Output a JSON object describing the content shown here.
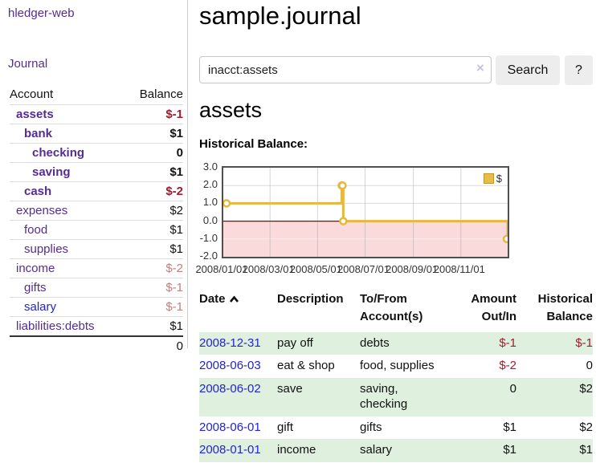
{
  "app": {
    "brand": "hledger-web",
    "nav": {
      "journal": "Journal"
    }
  },
  "sidebar": {
    "headers": {
      "account": "Account",
      "balance": "Balance"
    },
    "accounts": [
      {
        "name": "assets",
        "balance": "$-1",
        "indent": 1,
        "bold": true,
        "balance_tone": "neg-strong",
        "link_tone": "purple"
      },
      {
        "name": "bank",
        "balance": "$1",
        "indent": 2,
        "bold": true,
        "balance_tone": "",
        "link_tone": "purple"
      },
      {
        "name": "checking",
        "balance": "0",
        "indent": 3,
        "bold": true,
        "balance_tone": "",
        "link_tone": "purple"
      },
      {
        "name": "saving",
        "balance": "$1",
        "indent": 3,
        "bold": true,
        "balance_tone": "",
        "link_tone": "purple"
      },
      {
        "name": "cash",
        "balance": "$-2",
        "indent": 2,
        "bold": true,
        "balance_tone": "neg-strong",
        "link_tone": "purple"
      },
      {
        "name": "expenses",
        "balance": "$2",
        "indent": 1,
        "bold": false,
        "balance_tone": "",
        "link_tone": "purple"
      },
      {
        "name": "food",
        "balance": "$1",
        "indent": 2,
        "bold": false,
        "balance_tone": "",
        "link_tone": "purple"
      },
      {
        "name": "supplies",
        "balance": "$1",
        "indent": 2,
        "bold": false,
        "balance_tone": "",
        "link_tone": "purple"
      },
      {
        "name": "income",
        "balance": "$-2",
        "indent": 1,
        "bold": false,
        "balance_tone": "neg-soft",
        "link_tone": "purple"
      },
      {
        "name": "gifts",
        "balance": "$-1",
        "indent": 2,
        "bold": false,
        "balance_tone": "neg-soft",
        "link_tone": "purple"
      },
      {
        "name": "salary",
        "balance": "$-1",
        "indent": 2,
        "bold": false,
        "balance_tone": "neg-soft",
        "link_tone": "blue"
      },
      {
        "name": "liabilities:debts",
        "balance": "$1",
        "indent": 1,
        "bold": false,
        "balance_tone": "",
        "link_tone": "purple"
      }
    ],
    "total": "0"
  },
  "main": {
    "title": "sample.journal",
    "search": {
      "value": "inacct:assets",
      "clear_icon": "×",
      "search_button": "Search",
      "help_button": "?"
    },
    "account_heading": "assets",
    "chart_heading": "Historical Balance:"
  },
  "chart_data": {
    "type": "line",
    "title": "Historical Balance:",
    "step": true,
    "xlabel": "",
    "ylabel": "",
    "ylim": [
      -2,
      3
    ],
    "xrange": [
      "2008-01-01",
      "2008-12-31"
    ],
    "y_ticks": [
      "3.0",
      "2.0",
      "1.0",
      "0.0",
      "-1.0",
      "-2.0"
    ],
    "y_tick_values": [
      3,
      2,
      1,
      0,
      -1,
      -2
    ],
    "x_ticks": [
      {
        "label": "2008/01/01",
        "date": "2008-01-01"
      },
      {
        "label": "2008/03/01",
        "date": "2008-03-01"
      },
      {
        "label": "2008/05/01",
        "date": "2008-05-01"
      },
      {
        "label": "2008/07/01",
        "date": "2008-07-01"
      },
      {
        "label": "2008/09/01",
        "date": "2008-09-01"
      },
      {
        "label": "2008/11/01",
        "date": "2008-11-01"
      }
    ],
    "grid": true,
    "legend_position": "top-right",
    "legend": [
      {
        "label": "$",
        "color": "#e9bc45"
      }
    ],
    "series": [
      {
        "name": "$",
        "color": "#e7b83e",
        "points": [
          [
            "2008-01-01",
            1
          ],
          [
            "2008-06-01",
            2
          ],
          [
            "2008-06-02",
            2
          ],
          [
            "2008-06-03",
            0
          ],
          [
            "2008-12-31",
            -1
          ]
        ]
      }
    ],
    "negative_region_color": "#fadada",
    "zero_line_color": "#990000",
    "grid_color": "#dcdcdc"
  },
  "register": {
    "headers": {
      "date": "Date",
      "description": "Description",
      "accounts_line1": "To/From",
      "accounts_line2": "Account(s)",
      "amount_line1": "Amount",
      "amount_line2": "Out/In",
      "balance_line1": "Historical",
      "balance_line2": "Balance"
    },
    "rows": [
      {
        "date": "2008-12-31",
        "description": "pay off",
        "accounts": "debts",
        "amount": "$-1",
        "amount_negative": true,
        "balance": "$-1",
        "balance_negative": true
      },
      {
        "date": "2008-06-03",
        "description": "eat & shop",
        "accounts": "food, supplies",
        "amount": "$-2",
        "amount_negative": true,
        "balance": "0",
        "balance_negative": false
      },
      {
        "date": "2008-06-02",
        "description": "save",
        "accounts": "saving, checking",
        "amount": "0",
        "amount_negative": false,
        "balance": "$2",
        "balance_negative": false
      },
      {
        "date": "2008-06-01",
        "description": "gift",
        "accounts": "gifts",
        "amount": "$1",
        "amount_negative": false,
        "balance": "$2",
        "balance_negative": false
      },
      {
        "date": "2008-01-01",
        "description": "income",
        "accounts": "salary",
        "amount": "$1",
        "amount_negative": false,
        "balance": "$1",
        "balance_negative": false
      }
    ]
  }
}
